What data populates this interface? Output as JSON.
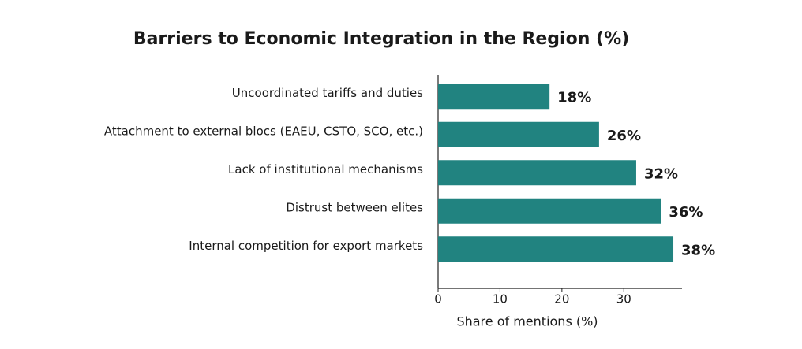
{
  "chart_data": {
    "type": "barh",
    "title": "Barriers to Economic Integration in the Region (%)",
    "x_label": "Share of mentions (%)",
    "categories": [
      "Uncoordinated tariffs and duties",
      "Attachment to external blocs (EAEU, CSTO, SCO, etc.)",
      "Lack of institutional mechanisms",
      "Distrust between elites",
      "Internal competition for export markets"
    ],
    "values": [
      18,
      26,
      32,
      36,
      38
    ],
    "value_labels": [
      "18%",
      "26%",
      "32%",
      "36%",
      "38%"
    ],
    "color": "#218380",
    "xlim": [
      0,
      39.4
    ],
    "xticks": [
      0,
      10,
      20,
      30
    ]
  }
}
